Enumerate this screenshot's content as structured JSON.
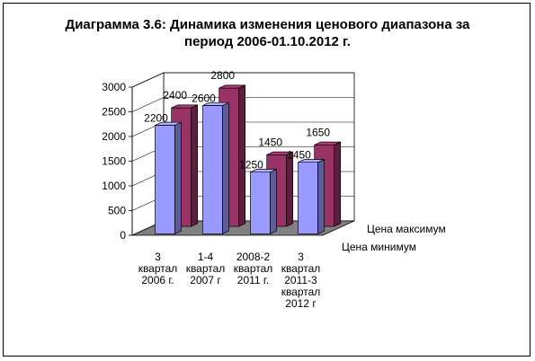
{
  "chart_data": {
    "type": "bar",
    "title": "Диаграмма 3.6: Динамика изменения ценового диапазона за период 2006-01.10.2012 г.",
    "title_lines": [
      "Диаграмма 3.6: Динамика изменения ценового диапазона за",
      "период 2006-01.10.2012 г."
    ],
    "categories": [
      "3 квартал 2006 г.",
      "1-4 квартал 2007 г",
      "2008-2 квартал 2011 г.",
      "3 квартал 2011-3 квартал 2012 г"
    ],
    "category_lines": [
      [
        "3",
        "квартал",
        "2006 г."
      ],
      [
        "1-4",
        "квартал",
        "2007 г"
      ],
      [
        "2008-2",
        "квартал",
        "2011 г."
      ],
      [
        "3",
        "квартал",
        "2011-3",
        "квартал",
        "2012 г"
      ]
    ],
    "series": [
      {
        "name": "Цена минимум",
        "values": [
          2200,
          2600,
          1250,
          1450
        ],
        "color": "#9999ff"
      },
      {
        "name": "Цена максимум",
        "values": [
          2400,
          2800,
          1450,
          1650
        ],
        "color": "#993366"
      }
    ],
    "ylim": [
      0,
      3000
    ],
    "yticks": [
      "0",
      "500",
      "1000",
      "1500",
      "2000",
      "2500",
      "3000"
    ],
    "grid": true,
    "legend": "right",
    "floor_color": "#808080"
  }
}
